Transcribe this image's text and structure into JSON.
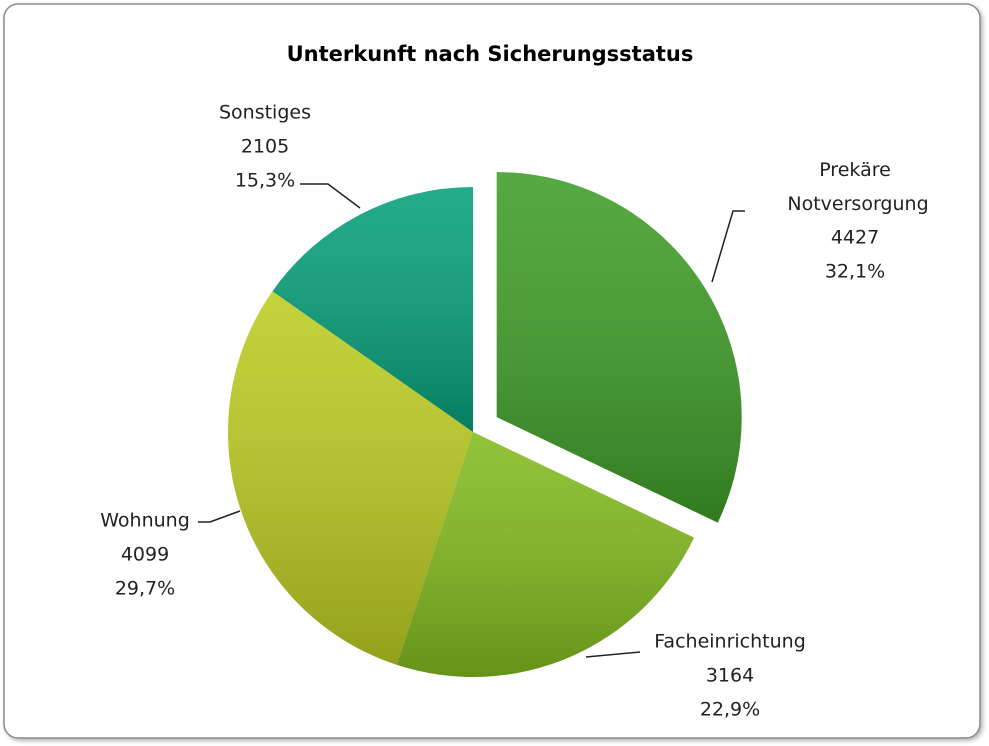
{
  "chart_data": {
    "type": "pie",
    "title": "Unterkunft nach Sicherungsstatus",
    "categories": [
      "Prekäre Notversorgung",
      "Facheinrichtung",
      "Wohnung",
      "Sonstiges"
    ],
    "values": [
      4427,
      3164,
      4099,
      2105
    ],
    "percent_labels": [
      "32,1%",
      "22,9%",
      "29,7%",
      "15,3%"
    ],
    "colors": [
      "#3f9d28",
      "#82bb1e",
      "#bccc22",
      "#06a07a"
    ],
    "exploded": [
      true,
      false,
      false,
      false
    ]
  }
}
